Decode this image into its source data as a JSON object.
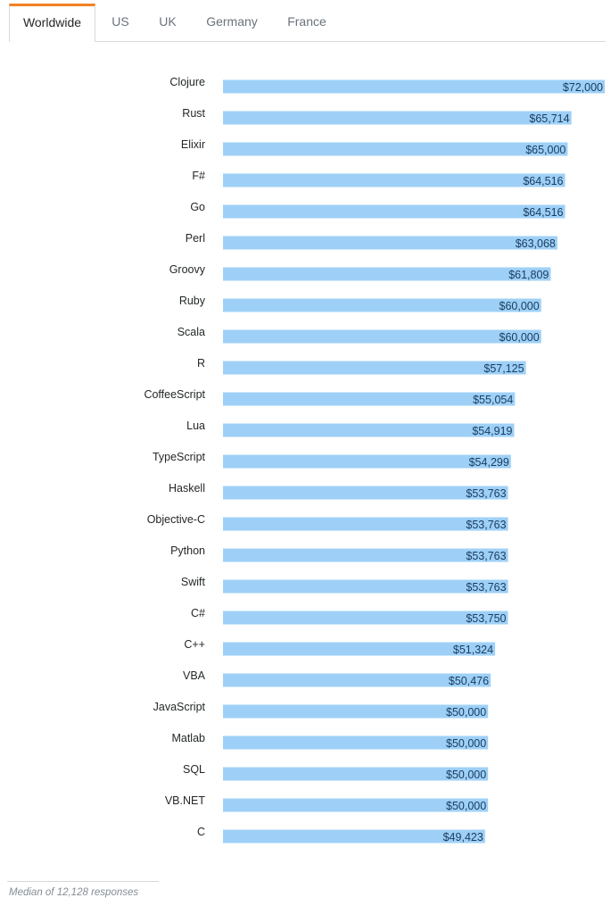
{
  "tabs": [
    {
      "label": "Worldwide",
      "active": true
    },
    {
      "label": "US",
      "active": false
    },
    {
      "label": "UK",
      "active": false
    },
    {
      "label": "Germany",
      "active": false
    },
    {
      "label": "France",
      "active": false
    }
  ],
  "colors": {
    "bar": "#9ed0f7",
    "accent": "#f48024"
  },
  "chart_data": {
    "type": "bar",
    "orientation": "horizontal",
    "title": "",
    "xlabel": "",
    "ylabel": "",
    "xlim": [
      0,
      72000
    ],
    "grid": false,
    "categories": [
      "Clojure",
      "Rust",
      "Elixir",
      "F#",
      "Go",
      "Perl",
      "Groovy",
      "Ruby",
      "Scala",
      "R",
      "CoffeeScript",
      "Lua",
      "TypeScript",
      "Haskell",
      "Objective-C",
      "Python",
      "Swift",
      "C#",
      "C++",
      "VBA",
      "JavaScript",
      "Matlab",
      "SQL",
      "VB.NET",
      "C"
    ],
    "values": [
      72000,
      65714,
      65000,
      64516,
      64516,
      63068,
      61809,
      60000,
      60000,
      57125,
      55054,
      54919,
      54299,
      53763,
      53763,
      53763,
      53763,
      53750,
      51324,
      50476,
      50000,
      50000,
      50000,
      50000,
      49423
    ],
    "value_labels": [
      "$72,000",
      "$65,714",
      "$65,000",
      "$64,516",
      "$64,516",
      "$63,068",
      "$61,809",
      "$60,000",
      "$60,000",
      "$57,125",
      "$55,054",
      "$54,919",
      "$54,299",
      "$53,763",
      "$53,763",
      "$53,763",
      "$53,763",
      "$53,750",
      "$51,324",
      "$50,476",
      "$50,000",
      "$50,000",
      "$50,000",
      "$50,000",
      "$49,423"
    ]
  },
  "footnote": "Median of 12,128 responses"
}
